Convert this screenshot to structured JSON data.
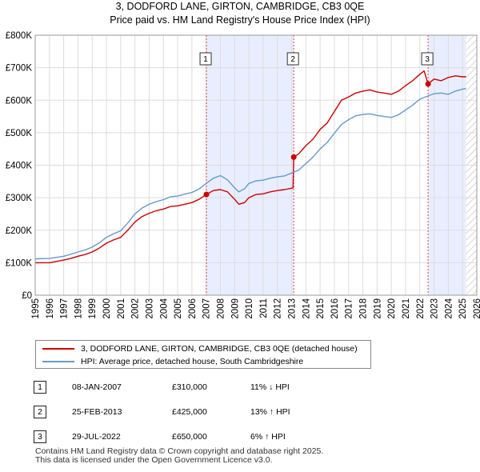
{
  "title_line1": "3, DODFORD LANE, GIRTON, CAMBRIDGE, CB3 0QE",
  "title_line2": "Price paid vs. HM Land Registry's House Price Index (HPI)",
  "legend": {
    "property_label": "3, DODFORD LANE, GIRTON, CAMBRIDGE, CB3 0QE (detached house)",
    "hpi_label": "HPI: Average price, detached house, South Cambridgeshire"
  },
  "transactions": [
    {
      "id": "1",
      "date": "08-JAN-2007",
      "price": "£310,000",
      "hpi_diff": "11% ↓ HPI"
    },
    {
      "id": "2",
      "date": "25-FEB-2013",
      "price": "£425,000",
      "hpi_diff": "13% ↑ HPI"
    },
    {
      "id": "3",
      "date": "29-JUL-2022",
      "price": "£650,000",
      "hpi_diff": "6% ↑ HPI"
    }
  ],
  "footer_line1": "Contains HM Land Registry data © Crown copyright and database right 2025.",
  "footer_line2": "This data is licensed under the Open Government Licence v3.0.",
  "colors": {
    "property": "#cc0000",
    "hpi": "#6699cc",
    "shade": "#e8eeff",
    "marker_line": "#dd4444"
  },
  "chart_data": {
    "type": "line",
    "title": "3, DODFORD LANE, GIRTON, CAMBRIDGE, CB3 0QE — Price paid vs. HM Land Registry's House Price Index (HPI)",
    "xlabel": "",
    "ylabel": "",
    "xlim": [
      1995,
      2026
    ],
    "ylim": [
      0,
      800000
    ],
    "x_ticks": [
      "1995",
      "1996",
      "1997",
      "1998",
      "1999",
      "2000",
      "2001",
      "2002",
      "2003",
      "2004",
      "2005",
      "2006",
      "2007",
      "2008",
      "2009",
      "2010",
      "2011",
      "2012",
      "2013",
      "2014",
      "2015",
      "2016",
      "2017",
      "2018",
      "2019",
      "2020",
      "2021",
      "2022",
      "2023",
      "2024",
      "2025",
      "2026"
    ],
    "y_ticks": [
      {
        "value": 0,
        "label": "£0"
      },
      {
        "value": 100000,
        "label": "£100K"
      },
      {
        "value": 200000,
        "label": "£200K"
      },
      {
        "value": 300000,
        "label": "£300K"
      },
      {
        "value": 400000,
        "label": "£400K"
      },
      {
        "value": 500000,
        "label": "£500K"
      },
      {
        "value": 600000,
        "label": "£600K"
      },
      {
        "value": 700000,
        "label": "£700K"
      },
      {
        "value": 800000,
        "label": "£800K"
      }
    ],
    "grid": true,
    "shaded_ranges": [
      [
        2007.02,
        2013.15
      ],
      [
        2022.58,
        2025.25
      ]
    ],
    "hatched_from": 2025.25,
    "series": [
      {
        "name": "3, DODFORD LANE, GIRTON, CAMBRIDGE, CB3 0QE (detached house)",
        "color": "#cc0000",
        "x": [
          1995.0,
          1996.0,
          1997.0,
          1997.5,
          1998.0,
          1998.5,
          1999.0,
          1999.5,
          2000.0,
          2000.5,
          2001.0,
          2001.5,
          2002.0,
          2002.5,
          2003.0,
          2003.5,
          2004.0,
          2004.5,
          2005.0,
          2005.5,
          2006.0,
          2006.5,
          2007.02,
          2007.5,
          2008.0,
          2008.5,
          2009.0,
          2009.3,
          2009.7,
          2010.0,
          2010.5,
          2011.0,
          2011.5,
          2012.0,
          2012.5,
          2013.1,
          2013.15,
          2013.5,
          2014.0,
          2014.5,
          2015.0,
          2015.5,
          2016.0,
          2016.5,
          2017.0,
          2017.5,
          2018.0,
          2018.5,
          2019.0,
          2019.5,
          2020.0,
          2020.5,
          2021.0,
          2021.5,
          2022.0,
          2022.3,
          2022.58,
          2022.8,
          2023.0,
          2023.5,
          2024.0,
          2024.5,
          2025.0,
          2025.25
        ],
        "values": [
          100000,
          100000,
          108000,
          113000,
          120000,
          125000,
          133000,
          145000,
          160000,
          170000,
          178000,
          200000,
          225000,
          242000,
          252000,
          260000,
          265000,
          273000,
          275000,
          280000,
          285000,
          295000,
          310000,
          322000,
          325000,
          318000,
          295000,
          280000,
          285000,
          300000,
          310000,
          312000,
          318000,
          322000,
          325000,
          330000,
          425000,
          435000,
          460000,
          480000,
          510000,
          530000,
          565000,
          600000,
          610000,
          622000,
          628000,
          632000,
          625000,
          622000,
          618000,
          628000,
          645000,
          660000,
          680000,
          690000,
          650000,
          658000,
          665000,
          660000,
          670000,
          675000,
          672000,
          672000
        ]
      },
      {
        "name": "HPI: Average price, detached house, South Cambridgeshire",
        "color": "#6699cc",
        "x": [
          1995.0,
          1996.0,
          1997.0,
          1997.5,
          1998.0,
          1998.5,
          1999.0,
          1999.5,
          2000.0,
          2000.5,
          2001.0,
          2001.5,
          2002.0,
          2002.5,
          2003.0,
          2003.5,
          2004.0,
          2004.5,
          2005.0,
          2005.5,
          2006.0,
          2006.5,
          2007.0,
          2007.5,
          2008.0,
          2008.5,
          2009.0,
          2009.3,
          2009.7,
          2010.0,
          2010.5,
          2011.0,
          2011.5,
          2012.0,
          2012.5,
          2013.0,
          2013.5,
          2014.0,
          2014.5,
          2015.0,
          2015.5,
          2016.0,
          2016.5,
          2017.0,
          2017.5,
          2018.0,
          2018.5,
          2019.0,
          2019.5,
          2020.0,
          2020.5,
          2021.0,
          2021.5,
          2022.0,
          2022.5,
          2023.0,
          2023.5,
          2024.0,
          2024.5,
          2025.0,
          2025.25
        ],
        "values": [
          112000,
          113000,
          120000,
          126000,
          133000,
          139000,
          148000,
          161000,
          178000,
          189000,
          198000,
          222000,
          250000,
          268000,
          280000,
          288000,
          294000,
          303000,
          305000,
          311000,
          316000,
          327000,
          344000,
          360000,
          368000,
          355000,
          330000,
          318000,
          328000,
          344000,
          352000,
          354000,
          360000,
          364000,
          367000,
          376000,
          385000,
          405000,
          425000,
          450000,
          470000,
          498000,
          525000,
          540000,
          552000,
          556000,
          558000,
          553000,
          550000,
          547000,
          555000,
          570000,
          585000,
          603000,
          612000,
          620000,
          622000,
          618000,
          628000,
          634000,
          636000
        ]
      }
    ],
    "sale_points": [
      {
        "label": "1",
        "x": 2007.02,
        "value": 310000
      },
      {
        "label": "2",
        "x": 2013.15,
        "value": 425000
      },
      {
        "label": "3",
        "x": 2022.58,
        "value": 650000
      }
    ]
  }
}
